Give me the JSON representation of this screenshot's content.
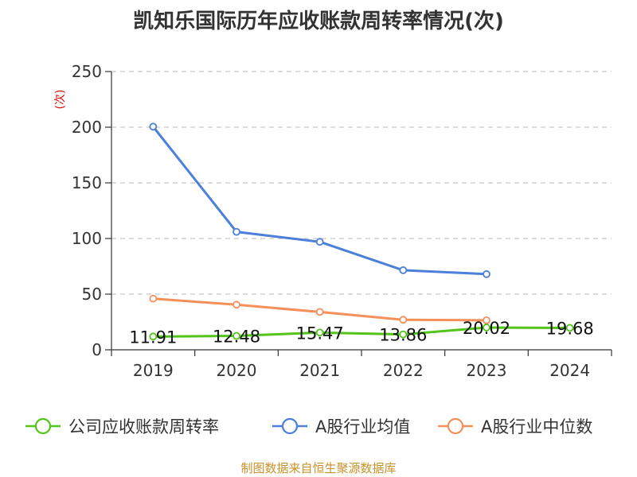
{
  "title": "凯知乐国际历年应收账款周转率情况(次)",
  "footer": "制图数据来自恒生聚源数据库",
  "chart_data": {
    "type": "line",
    "title": "凯知乐国际历年应收账款周转率情况(次)",
    "ylabel": "(次)",
    "xlabel": "",
    "categories": [
      "2019",
      "2020",
      "2021",
      "2022",
      "2023",
      "2024"
    ],
    "ylim": [
      0,
      250
    ],
    "yticks": [
      0,
      50,
      100,
      150,
      200,
      250
    ],
    "grid": true,
    "legend_position": "bottom",
    "series": [
      {
        "name": "公司应收账款周转率",
        "color": "#52c41a",
        "values": [
          11.91,
          12.48,
          15.47,
          13.86,
          20.02,
          19.68
        ],
        "labels": [
          "11.91",
          "12.48",
          "15.47",
          "13.86",
          "20.02",
          "19.68"
        ]
      },
      {
        "name": "A股行业均值",
        "color": "#4a7fdc",
        "values": [
          200.5,
          106,
          97,
          71.5,
          68,
          null
        ]
      },
      {
        "name": "A股行业中位数",
        "color": "#f5905a",
        "values": [
          46,
          40.5,
          34,
          27,
          26.5,
          null
        ]
      }
    ]
  }
}
